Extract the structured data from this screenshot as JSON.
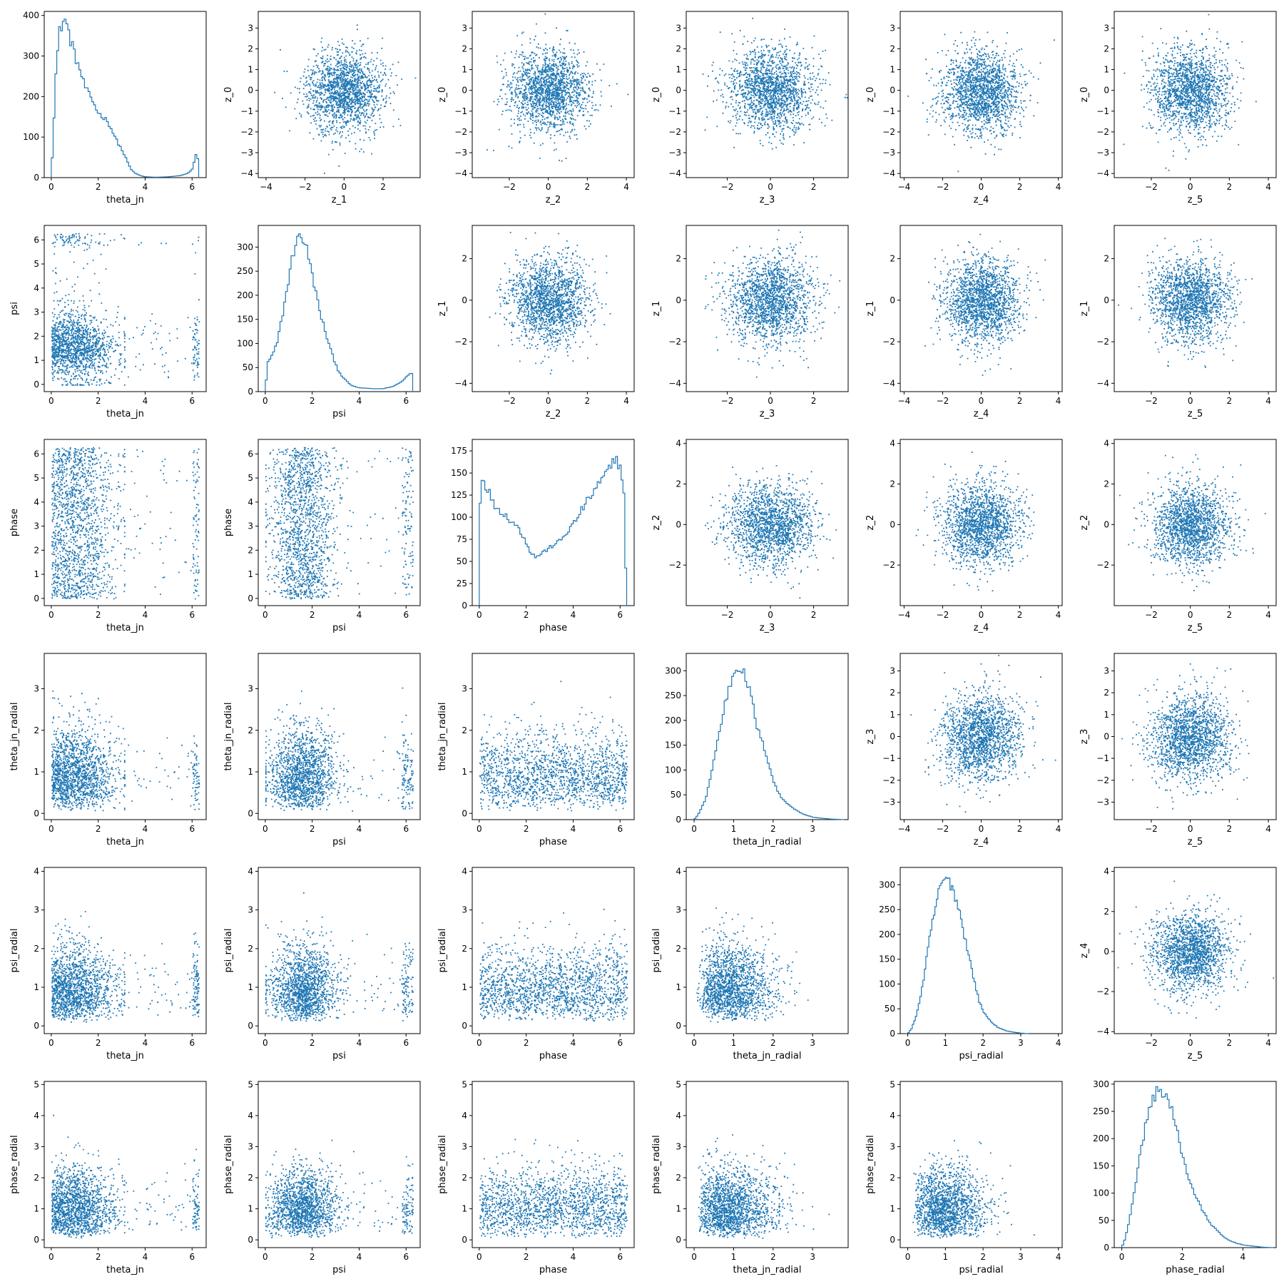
{
  "color": "#1f77b4",
  "columns": [
    {
      "x_label": "theta_jn",
      "x_ticks": [
        "0",
        "2",
        "4",
        "6"
      ],
      "x_range": [
        -0.3,
        6.6
      ]
    },
    {
      "x_label": "psi",
      "x_ticks": [
        "0",
        "2",
        "4",
        "6"
      ],
      "x_range": [
        -0.3,
        6.6
      ]
    },
    {
      "x_label": "phase",
      "x_ticks": [
        "0",
        "2",
        "4",
        "6"
      ],
      "x_range": [
        -0.3,
        6.6
      ]
    },
    {
      "x_label": "theta_jn_radial",
      "x_ticks": [
        "0",
        "1",
        "2",
        "3"
      ],
      "x_range": [
        -0.2,
        3.9
      ]
    },
    {
      "x_label": "psi_radial",
      "x_ticks": [
        "0",
        "1",
        "2",
        "3",
        "4"
      ],
      "x_range": [
        -0.2,
        4.1
      ]
    },
    {
      "x_label": "phase_radial",
      "x_ticks": [
        "0",
        "2",
        "4"
      ],
      "x_range": [
        -0.25,
        5.1
      ]
    }
  ],
  "upper_columns": [
    {
      "x_label": "z_1",
      "x_ticks": [
        "-4",
        "-2",
        "0",
        "2"
      ],
      "x_range": [
        -4.4,
        3.9
      ]
    },
    {
      "x_label": "z_2",
      "x_ticks": [
        "-2",
        "0",
        "2",
        "4"
      ],
      "x_range": [
        -3.9,
        4.4
      ]
    },
    {
      "x_label": "z_3",
      "x_ticks": [
        "-2",
        "0",
        "2"
      ],
      "x_range": [
        -3.9,
        3.6
      ]
    },
    {
      "x_label": "z_4",
      "x_ticks": [
        "-4",
        "-2",
        "0",
        "2",
        "4"
      ],
      "x_range": [
        -4.2,
        4.2
      ]
    },
    {
      "x_label": "z_5",
      "x_ticks": [
        "-2",
        "0",
        "2",
        "4"
      ],
      "x_range": [
        -3.9,
        4.4
      ]
    }
  ],
  "upper_rows": [
    {
      "y_label": "z_0",
      "y_ticks": [
        "-4",
        "-3",
        "-2",
        "-1",
        "0",
        "1",
        "2",
        "3"
      ],
      "y_range": [
        -4.2,
        3.8
      ]
    },
    {
      "y_label": "z_1",
      "y_ticks": [
        "-4",
        "-2",
        "0",
        "2"
      ],
      "y_range": [
        -4.4,
        3.6
      ]
    },
    {
      "y_label": "z_2",
      "y_ticks": [
        "-2",
        "0",
        "2",
        "4"
      ],
      "y_range": [
        -4.0,
        4.2
      ]
    },
    {
      "y_label": "z_3",
      "y_ticks": [
        "-3",
        "-2",
        "-1",
        "0",
        "1",
        "2",
        "3"
      ],
      "y_range": [
        -3.8,
        3.8
      ]
    },
    {
      "y_label": "z_4",
      "y_ticks": [
        "-4",
        "-2",
        "0",
        "2",
        "4"
      ],
      "y_range": [
        -4.1,
        4.2
      ]
    }
  ],
  "chart_data": {
    "type": "scatter",
    "layout": "corner plot, 6x6 grid: histograms on the diagonal, lower triangle = pairwise scatter of physical parameters, upper triangle = latent z scatter",
    "grid": false,
    "histograms": [
      {
        "parameter": "theta_jn",
        "x_ticks": [
          "0",
          "2",
          "4",
          "6"
        ],
        "y_ticks": [
          "0",
          "100",
          "200",
          "300",
          "400"
        ],
        "xlim": [
          -0.3,
          6.6
        ],
        "ylim": [
          0,
          410
        ],
        "x": [
          0.0,
          0.2,
          0.35,
          0.5,
          0.6,
          0.7,
          0.8,
          0.9,
          1.0,
          1.2,
          1.4,
          1.6,
          1.8,
          2.0,
          2.2,
          2.4,
          2.6,
          2.8,
          3.0,
          3.2,
          3.4,
          3.6,
          3.8,
          4.0,
          4.5,
          5.0,
          5.5,
          5.8,
          6.0,
          6.1,
          6.2,
          6.28
        ],
        "counts": [
          0,
          260,
          360,
          385,
          390,
          370,
          340,
          330,
          300,
          270,
          230,
          205,
          185,
          160,
          150,
          140,
          115,
          90,
          70,
          45,
          20,
          10,
          5,
          2,
          1,
          2,
          5,
          10,
          20,
          40,
          65,
          30
        ]
      },
      {
        "parameter": "psi",
        "x_ticks": [
          "0",
          "2",
          "4",
          "6"
        ],
        "y_ticks": [
          "0",
          "50",
          "100",
          "150",
          "200",
          "250",
          "300"
        ],
        "xlim": [
          -0.3,
          6.6
        ],
        "ylim": [
          0,
          345
        ],
        "x": [
          0.0,
          0.1,
          0.3,
          0.5,
          0.7,
          0.9,
          1.1,
          1.3,
          1.5,
          1.7,
          1.9,
          2.1,
          2.3,
          2.5,
          2.7,
          2.9,
          3.1,
          3.3,
          3.5,
          3.7,
          4.0,
          4.3,
          4.6,
          5.0,
          5.4,
          5.8,
          6.1,
          6.28
        ],
        "counts": [
          0,
          60,
          75,
          100,
          150,
          205,
          265,
          310,
          325,
          310,
          265,
          220,
          170,
          135,
          100,
          70,
          45,
          30,
          20,
          12,
          8,
          7,
          6,
          6,
          10,
          20,
          35,
          40
        ]
      },
      {
        "parameter": "phase",
        "x_ticks": [
          "0",
          "2",
          "4",
          "6"
        ],
        "y_ticks": [
          "0",
          "25",
          "50",
          "75",
          "100",
          "125",
          "150",
          "175"
        ],
        "xlim": [
          -0.3,
          6.6
        ],
        "ylim": [
          0,
          188
        ],
        "x": [
          0.0,
          0.05,
          0.2,
          0.4,
          0.6,
          0.8,
          1.0,
          1.2,
          1.4,
          1.6,
          1.8,
          2.0,
          2.2,
          2.4,
          2.6,
          2.8,
          3.0,
          3.2,
          3.4,
          3.6,
          3.8,
          4.0,
          4.2,
          4.4,
          4.6,
          4.8,
          5.0,
          5.2,
          5.4,
          5.6,
          5.8,
          6.0,
          6.15,
          6.28
        ],
        "counts": [
          0,
          150,
          140,
          130,
          115,
          110,
          105,
          100,
          95,
          90,
          82,
          72,
          60,
          55,
          58,
          62,
          65,
          70,
          72,
          78,
          85,
          92,
          100,
          110,
          118,
          125,
          135,
          140,
          150,
          155,
          170,
          155,
          140,
          0
        ]
      },
      {
        "parameter": "theta_jn_radial",
        "x_ticks": [
          "0",
          "1",
          "2",
          "3"
        ],
        "y_ticks": [
          "0",
          "50",
          "100",
          "150",
          "200",
          "250",
          "300"
        ],
        "xlim": [
          -0.2,
          3.9
        ],
        "ylim": [
          0,
          335
        ],
        "x": [
          0.0,
          0.1,
          0.2,
          0.3,
          0.4,
          0.5,
          0.6,
          0.7,
          0.8,
          0.9,
          1.0,
          1.1,
          1.2,
          1.3,
          1.4,
          1.5,
          1.6,
          1.7,
          1.8,
          1.9,
          2.0,
          2.1,
          2.2,
          2.4,
          2.6,
          2.8,
          3.0,
          3.2,
          3.5,
          3.8
        ],
        "counts": [
          0,
          10,
          25,
          45,
          80,
          120,
          160,
          200,
          240,
          270,
          295,
          310,
          305,
          285,
          260,
          225,
          185,
          160,
          140,
          110,
          80,
          60,
          45,
          30,
          18,
          10,
          5,
          3,
          1,
          0
        ]
      },
      {
        "parameter": "psi_radial",
        "x_ticks": [
          "0",
          "1",
          "2",
          "3",
          "4"
        ],
        "y_ticks": [
          "0",
          "50",
          "100",
          "150",
          "200",
          "250",
          "300"
        ],
        "xlim": [
          -0.2,
          4.1
        ],
        "ylim": [
          0,
          335
        ],
        "x": [
          0.0,
          0.1,
          0.2,
          0.3,
          0.4,
          0.5,
          0.6,
          0.7,
          0.8,
          0.9,
          1.0,
          1.1,
          1.2,
          1.3,
          1.4,
          1.5,
          1.6,
          1.7,
          1.8,
          1.9,
          2.0,
          2.2,
          2.4,
          2.6,
          2.8,
          3.0,
          3.2
        ],
        "counts": [
          0,
          10,
          30,
          60,
          100,
          150,
          200,
          240,
          280,
          300,
          315,
          305,
          295,
          265,
          240,
          200,
          165,
          130,
          95,
          65,
          45,
          25,
          12,
          6,
          3,
          1,
          0
        ]
      },
      {
        "parameter": "phase_radial",
        "x_ticks": [
          "0",
          "2",
          "4"
        ],
        "y_ticks": [
          "0",
          "50",
          "100",
          "150",
          "200",
          "250",
          "300"
        ],
        "xlim": [
          -0.25,
          5.1
        ],
        "ylim": [
          0,
          305
        ],
        "x": [
          0.0,
          0.1,
          0.25,
          0.4,
          0.55,
          0.7,
          0.85,
          1.0,
          1.15,
          1.3,
          1.45,
          1.6,
          1.75,
          1.9,
          2.05,
          2.2,
          2.4,
          2.6,
          2.8,
          3.0,
          3.2,
          3.4,
          3.6,
          3.8,
          4.0,
          4.3,
          4.6,
          5.0
        ],
        "counts": [
          0,
          15,
          50,
          100,
          150,
          200,
          240,
          270,
          285,
          290,
          280,
          260,
          230,
          195,
          160,
          130,
          100,
          75,
          55,
          40,
          28,
          18,
          12,
          8,
          5,
          3,
          1,
          0
        ]
      }
    ],
    "scatter_pairs": [
      {
        "x": "theta_jn",
        "y": "psi"
      },
      {
        "x": "theta_jn",
        "y": "phase"
      },
      {
        "x": "psi",
        "y": "phase"
      },
      {
        "x": "theta_jn",
        "y": "theta_jn_radial"
      },
      {
        "x": "psi",
        "y": "theta_jn_radial"
      },
      {
        "x": "phase",
        "y": "theta_jn_radial"
      },
      {
        "x": "theta_jn",
        "y": "psi_radial"
      },
      {
        "x": "psi",
        "y": "psi_radial"
      },
      {
        "x": "phase",
        "y": "psi_radial"
      },
      {
        "x": "theta_jn_radial",
        "y": "psi_radial"
      },
      {
        "x": "theta_jn",
        "y": "phase_radial"
      },
      {
        "x": "psi",
        "y": "phase_radial"
      },
      {
        "x": "phase",
        "y": "phase_radial"
      },
      {
        "x": "theta_jn_radial",
        "y": "phase_radial"
      },
      {
        "x": "psi_radial",
        "y": "phase_radial"
      },
      {
        "x": "z_1",
        "y": "z_0"
      },
      {
        "x": "z_2",
        "y": "z_0"
      },
      {
        "x": "z_3",
        "y": "z_0"
      },
      {
        "x": "z_4",
        "y": "z_0"
      },
      {
        "x": "z_5",
        "y": "z_0"
      },
      {
        "x": "z_2",
        "y": "z_1"
      },
      {
        "x": "z_3",
        "y": "z_1"
      },
      {
        "x": "z_4",
        "y": "z_1"
      },
      {
        "x": "z_5",
        "y": "z_1"
      },
      {
        "x": "z_3",
        "y": "z_2"
      },
      {
        "x": "z_4",
        "y": "z_2"
      },
      {
        "x": "z_5",
        "y": "z_2"
      },
      {
        "x": "z_4",
        "y": "z_3"
      },
      {
        "x": "z_5",
        "y": "z_3"
      },
      {
        "x": "z_5",
        "y": "z_4"
      }
    ],
    "axis_ranges": {
      "theta_jn": [
        -0.3,
        6.6
      ],
      "psi": [
        -0.3,
        6.6
      ],
      "phase": [
        -0.3,
        6.6
      ],
      "theta_jn_radial": [
        -0.2,
        3.9
      ],
      "psi_radial": [
        -0.2,
        4.1
      ],
      "phase_radial": [
        -0.25,
        5.1
      ],
      "theta_jn_radial_as_y": [
        -0.15,
        3.85
      ],
      "psi_radial_as_y": [
        -0.2,
        4.1
      ],
      "phase_radial_as_y": [
        -0.25,
        5.1
      ],
      "psi_as_y": [
        -0.3,
        6.6
      ],
      "phase_as_y": [
        -0.3,
        6.6
      ]
    },
    "y_ticks": {
      "psi": [
        "0",
        "1",
        "2",
        "3",
        "4",
        "5",
        "6"
      ],
      "phase": [
        "0",
        "1",
        "2",
        "3",
        "4",
        "5",
        "6"
      ],
      "theta_jn_radial": [
        "0",
        "1",
        "2",
        "3"
      ],
      "psi_radial": [
        "0",
        "1",
        "2",
        "3",
        "4"
      ],
      "phase_radial": [
        "0",
        "1",
        "2",
        "3",
        "4",
        "5"
      ]
    }
  }
}
